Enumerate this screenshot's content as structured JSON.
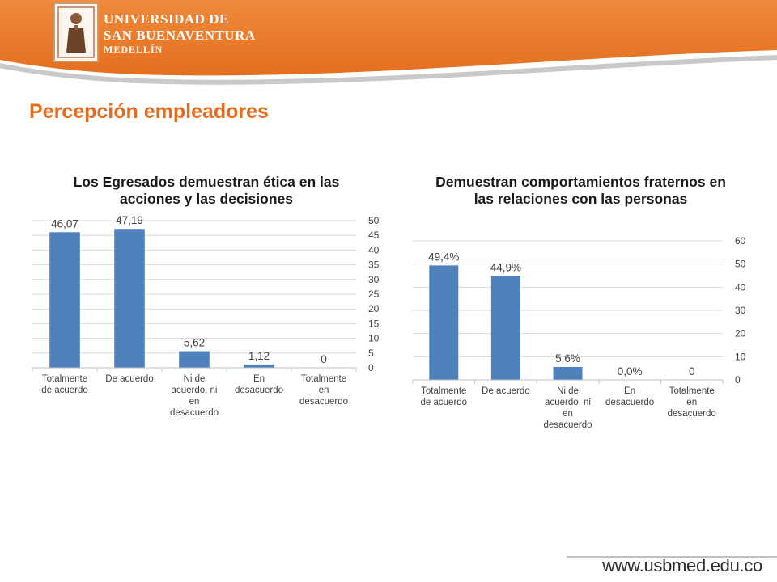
{
  "header": {
    "university_line1": "UNIVERSIDAD DE",
    "university_line2": "SAN BUENAVENTURA",
    "university_line3": "MEDELLÍN",
    "banner_color": "#e8772a"
  },
  "page": {
    "title": "Percepción empleadores",
    "title_color": "#e66b1e",
    "footer_url": "www.usbmed.edu.co"
  },
  "chart_data": [
    {
      "type": "bar",
      "title": "Los Egresados demuestran ética en las acciones y las decisiones",
      "categories": [
        [
          "Totalmente",
          "de acuerdo"
        ],
        [
          "De acuerdo"
        ],
        [
          "Ni de",
          "acuerdo, ni",
          "en",
          "desacuerdo"
        ],
        [
          "En",
          "desacuerdo"
        ],
        [
          "Totalmente",
          "en",
          "desacuerdo"
        ]
      ],
      "values": [
        46.07,
        47.19,
        5.62,
        1.12,
        0
      ],
      "data_labels": [
        "46,07",
        "47,19",
        "5,62",
        "1,12",
        "0"
      ],
      "ylim": [
        0,
        50
      ],
      "yticks": [
        0,
        5,
        10,
        15,
        20,
        25,
        30,
        35,
        40,
        45,
        50
      ],
      "y_axis_side": "right",
      "grid": true,
      "bar_color": "#4f81bd"
    },
    {
      "type": "bar",
      "title": "Demuestran comportamientos fraternos en las relaciones con las personas",
      "categories": [
        [
          "Totalmente",
          "de acuerdo"
        ],
        [
          "De acuerdo"
        ],
        [
          "Ni de",
          "acuerdo, ni",
          "en",
          "desacuerdo"
        ],
        [
          "En",
          "desacuerdo"
        ],
        [
          "Totalmente",
          "en",
          "desacuerdo"
        ]
      ],
      "values": [
        49.4,
        44.9,
        5.6,
        0,
        0
      ],
      "data_labels": [
        "49,4%",
        "44,9%",
        "5,6%",
        "0,0%",
        "0"
      ],
      "ylim": [
        0,
        60
      ],
      "yticks": [
        0,
        10,
        20,
        30,
        40,
        50,
        60
      ],
      "y_axis_side": "right",
      "grid": true,
      "bar_color": "#4f81bd"
    }
  ]
}
